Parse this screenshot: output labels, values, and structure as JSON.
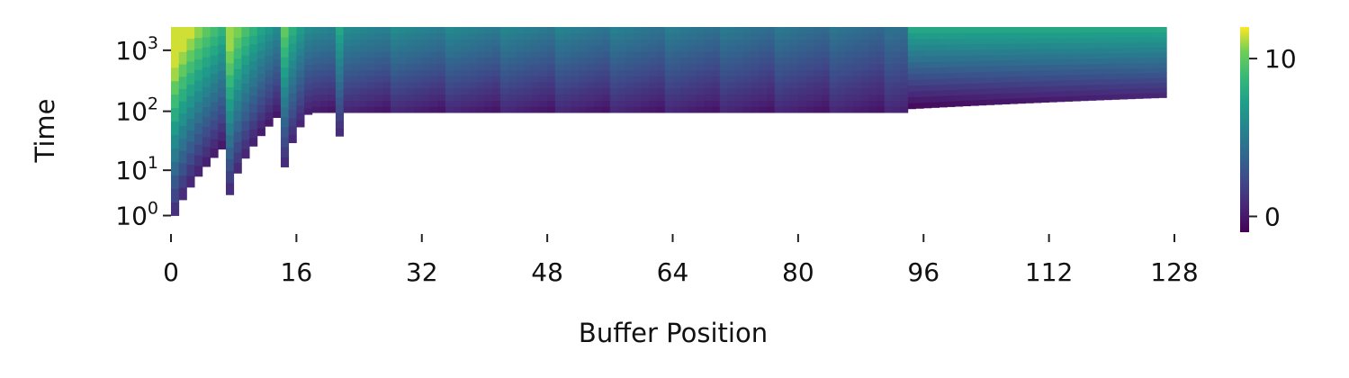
{
  "chart_data": {
    "type": "heatmap",
    "title": "",
    "xlabel": "Buffer Position",
    "ylabel": "Time",
    "xlim": [
      0,
      128
    ],
    "x_ticks": [
      "0",
      "16",
      "32",
      "48",
      "64",
      "80",
      "96",
      "112",
      "128"
    ],
    "y_scale": "log(1+t)",
    "y_ticks": [
      {
        "base": "10",
        "exp": "0",
        "value": 1
      },
      {
        "base": "10",
        "exp": "1",
        "value": 10
      },
      {
        "base": "10",
        "exp": "2",
        "value": 100
      },
      {
        "base": "10",
        "exp": "3",
        "value": 1000
      }
    ],
    "ylim": [
      1,
      2400
    ],
    "colormap": "viridis",
    "color_range": [
      -1,
      12
    ],
    "colorbar_ticks": [
      "0",
      "10"
    ],
    "colorbar_tick_values": [
      0,
      10
    ],
    "structure": {
      "columns": 127,
      "first_region_end": 94,
      "first_region_period": 7,
      "max_time": 2400,
      "description": "Triangular staircase: column i begins active at a time that grows with position; within the first region columns repeat in groups of 7 with a fresh reset every group; beyond position 94 the cells form smooth horizontal bands."
    }
  }
}
